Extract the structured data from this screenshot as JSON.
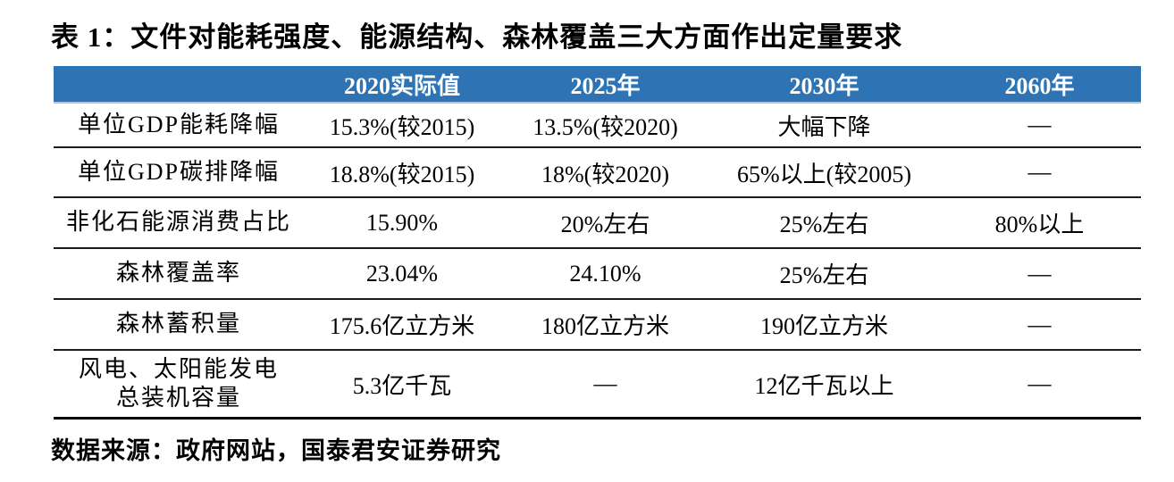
{
  "title": "表 1：文件对能耗强度、能源结构、森林覆盖三大方面作出定量要求",
  "table": {
    "columns": [
      "",
      "2020实际值",
      "2025年",
      "2030年",
      "2060年"
    ],
    "rows": [
      {
        "label": "单位GDP能耗降幅",
        "values": [
          "15.3%(较2015)",
          "13.5%(较2020)",
          "大幅下降",
          "—"
        ]
      },
      {
        "label": "单位GDP碳排降幅",
        "values": [
          "18.8%(较2015)",
          "18%(较2020)",
          "65%以上(较2005)",
          "—"
        ]
      },
      {
        "label": "非化石能源消费占比",
        "values": [
          "15.90%",
          "20%左右",
          "25%左右",
          "80%以上"
        ]
      },
      {
        "label": "森林覆盖率",
        "values": [
          "23.04%",
          "24.10%",
          "25%左右",
          "—"
        ]
      },
      {
        "label": "森林蓄积量",
        "values": [
          "175.6亿立方米",
          "180亿立方米",
          "190亿立方米",
          "—"
        ]
      },
      {
        "label": "风电、太阳能发电\n总装机容量",
        "values": [
          "5.3亿千瓦",
          "—",
          "12亿千瓦以上",
          "—"
        ]
      }
    ]
  },
  "source": "数据来源：政府网站，国泰君安证券研究",
  "colors": {
    "header_bg": "#2E74B5",
    "header_text": "#FFFFFF",
    "body_text": "#000000",
    "row_divider": "#1A1A1A"
  }
}
